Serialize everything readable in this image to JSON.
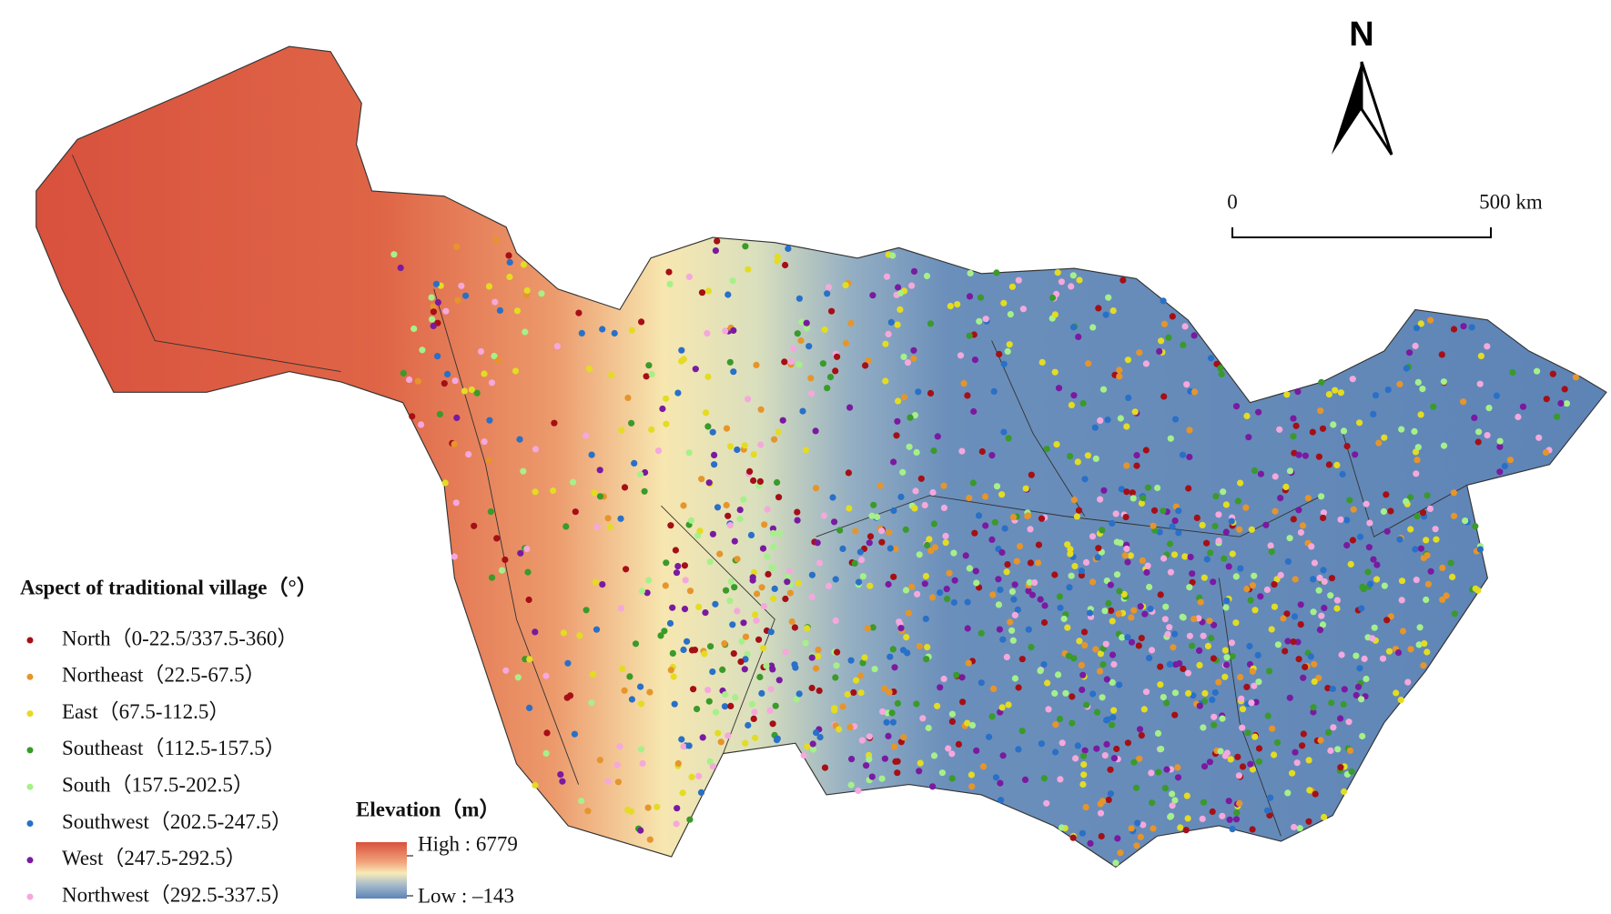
{
  "map": {
    "aspect_legend": {
      "title": "Aspect of traditional village（°）",
      "items": [
        {
          "label": "North（0-22.5/337.5-360）",
          "color": "#a50f15"
        },
        {
          "label": "Northeast（22.5-67.5）",
          "color": "#e6952b"
        },
        {
          "label": "East（67.5-112.5）",
          "color": "#e3dc22"
        },
        {
          "label": "Southeast（112.5-157.5）",
          "color": "#3a9a2a"
        },
        {
          "label": "South（157.5-202.5）",
          "color": "#a6f08a"
        },
        {
          "label": "Southwest（202.5-247.5）",
          "color": "#2870c8"
        },
        {
          "label": "West（247.5-292.5）",
          "color": "#7a1aa0"
        },
        {
          "label": "Northwest（292.5-337.5）",
          "color": "#f5a8dc"
        }
      ]
    },
    "elevation_legend": {
      "title": "Elevation（m）",
      "high_label": "High : 6779",
      "low_label": "Low : –143"
    },
    "north_arrow": "N",
    "scale_bar": {
      "start_label": "0",
      "end_label": "500 km"
    }
  }
}
